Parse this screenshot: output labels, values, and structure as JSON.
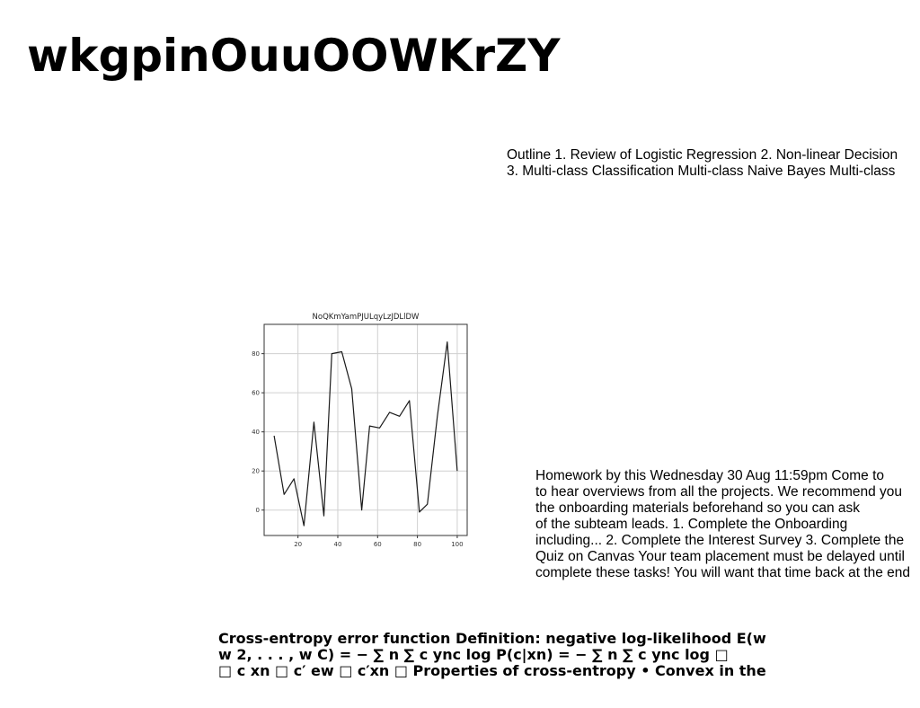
{
  "page": {
    "title": "wkgpinOuuOOWKrZY"
  },
  "outline": {
    "lines": [
      "Outline 1. Review of Logistic Regression 2. Non-linear Decision",
      "3. Multi-class Classification Multi-class Naive Bayes Multi-class"
    ]
  },
  "homework": {
    "lines": [
      "Homework by this Wednesday 30 Aug 11:59pm Come to",
      "to hear overviews from all the projects. We recommend you",
      "the onboarding materials beforehand so you can ask",
      "of the subteam leads. 1. Complete the Onboarding",
      "including... 2. Complete the Interest Survey 3. Complete the",
      "Quiz on Canvas Your team placement must be delayed until",
      "complete these tasks! You will want that time back at the end"
    ]
  },
  "cross_entropy": {
    "lines": [
      "Cross-entropy error function Definition: negative log-likelihood E(w",
      "w 2, . . . , w C) = − ∑ n ∑ c ync log P(c|xn) = − ∑ n ∑ c ync log □",
      "□ c xn □ c′ ew □ c′xn □ Properties of cross-entropy • Convex in the"
    ]
  },
  "chart_data": {
    "type": "line",
    "title": "NoQKmYamPJULqyLzJDLlDW",
    "xlabel": "",
    "ylabel": "",
    "x": [
      8,
      13,
      18,
      23,
      28,
      33,
      37,
      42,
      47,
      52,
      56,
      61,
      66,
      71,
      76,
      81,
      85,
      90,
      95,
      100
    ],
    "y": [
      38,
      8,
      16,
      -8,
      45,
      -3,
      80,
      81,
      62,
      0,
      43,
      42,
      50,
      48,
      56,
      -1,
      3,
      48,
      86,
      20
    ],
    "xlim": [
      3,
      105
    ],
    "ylim": [
      -13,
      95
    ],
    "xticks": [
      20,
      40,
      60,
      80,
      100
    ],
    "yticks": [
      0,
      20,
      40,
      60,
      80
    ],
    "grid": true,
    "line_color": "#1a1a1a"
  }
}
